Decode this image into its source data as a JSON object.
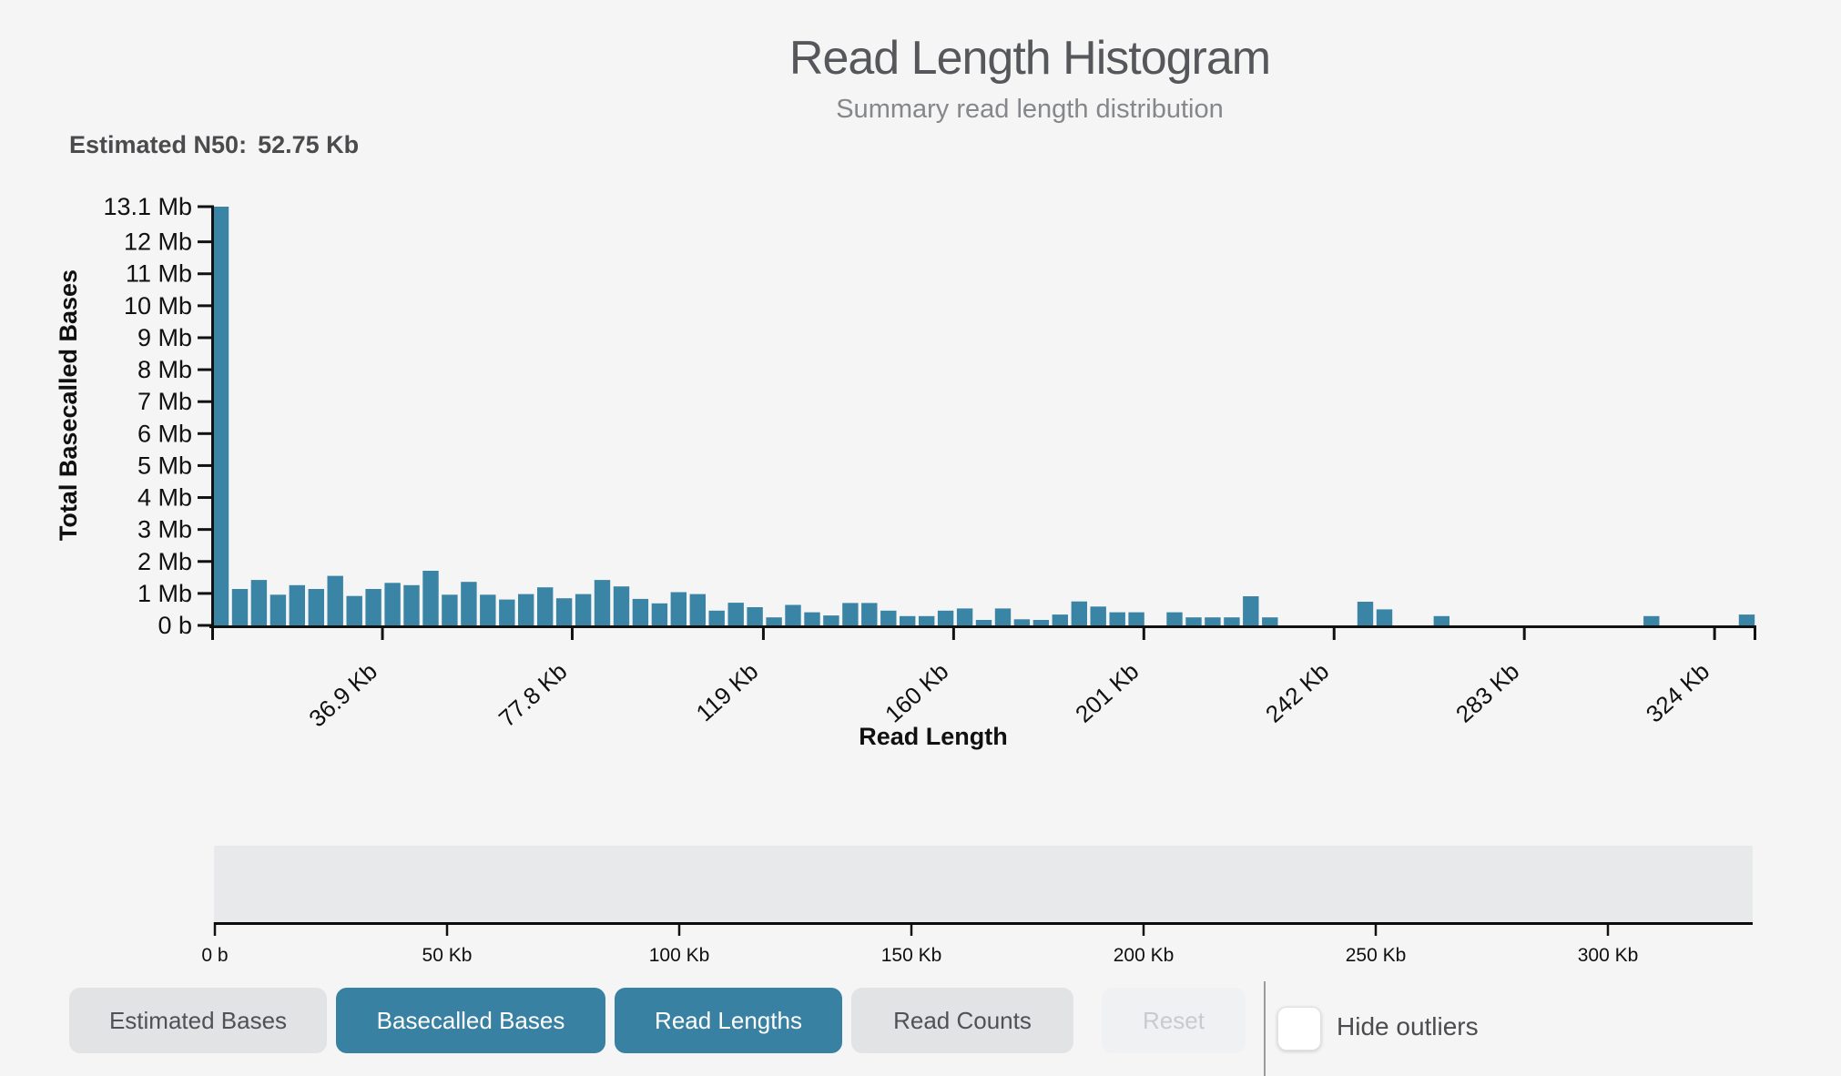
{
  "header": {
    "title": "Read Length Histogram",
    "subtitle": "Summary read length distribution"
  },
  "n50": {
    "label": "Estimated N50:",
    "value": "52.75 Kb"
  },
  "chart_data": {
    "type": "bar",
    "title": "Read Length Histogram",
    "xlabel": "Read Length",
    "ylabel": "Total Basecalled Bases",
    "bar_color": "#3a84a5",
    "axis_color": "#111111",
    "ylim": [
      0,
      13.1
    ],
    "x_max_kb": 333,
    "bin_width_kb": 4.1,
    "values_mb": [
      13.1,
      1.14,
      1.42,
      0.96,
      1.26,
      1.14,
      1.55,
      0.92,
      1.14,
      1.33,
      1.26,
      1.71,
      0.96,
      1.36,
      0.96,
      0.81,
      0.98,
      1.19,
      0.85,
      0.98,
      1.42,
      1.22,
      0.83,
      0.69,
      1.04,
      0.98,
      0.46,
      0.71,
      0.57,
      0.25,
      0.64,
      0.41,
      0.31,
      0.7,
      0.7,
      0.46,
      0.29,
      0.29,
      0.46,
      0.53,
      0.17,
      0.53,
      0.19,
      0.17,
      0.34,
      0.75,
      0.59,
      0.41,
      0.41,
      0,
      0.41,
      0.25,
      0.25,
      0.25,
      0.91,
      0.25,
      0,
      0,
      0,
      0,
      0.74,
      0.5,
      0,
      0,
      0.29,
      0,
      0,
      0,
      0,
      0,
      0,
      0,
      0,
      0,
      0,
      0.29,
      0,
      0,
      0,
      0,
      0.34
    ],
    "y_ticks": [
      {
        "v": 0,
        "label": "0 b"
      },
      {
        "v": 1,
        "label": "1 Mb"
      },
      {
        "v": 2,
        "label": "2 Mb"
      },
      {
        "v": 3,
        "label": "3 Mb"
      },
      {
        "v": 4,
        "label": "4 Mb"
      },
      {
        "v": 5,
        "label": "5 Mb"
      },
      {
        "v": 6,
        "label": "6 Mb"
      },
      {
        "v": 7,
        "label": "7 Mb"
      },
      {
        "v": 8,
        "label": "8 Mb"
      },
      {
        "v": 9,
        "label": "9 Mb"
      },
      {
        "v": 10,
        "label": "10 Mb"
      },
      {
        "v": 11,
        "label": "11 Mb"
      },
      {
        "v": 12,
        "label": "12 Mb"
      },
      {
        "v": 13.1,
        "label": "13.1 Mb"
      }
    ],
    "x_ticks": [
      {
        "kb": 36.9,
        "label": "36.9 Kb"
      },
      {
        "kb": 77.8,
        "label": "77.8 Kb"
      },
      {
        "kb": 119,
        "label": "119 Kb"
      },
      {
        "kb": 160,
        "label": "160 Kb"
      },
      {
        "kb": 201,
        "label": "201 Kb"
      },
      {
        "kb": 242,
        "label": "242 Kb"
      },
      {
        "kb": 283,
        "label": "283 Kb"
      },
      {
        "kb": 324,
        "label": "324 Kb"
      }
    ]
  },
  "slider": {
    "track_color": "#e8e9eb",
    "ticks": [
      {
        "kb": 0,
        "label": "0 b"
      },
      {
        "kb": 50,
        "label": "50 Kb"
      },
      {
        "kb": 100,
        "label": "100 Kb"
      },
      {
        "kb": 150,
        "label": "150 Kb"
      },
      {
        "kb": 200,
        "label": "200 Kb"
      },
      {
        "kb": 250,
        "label": "250 Kb"
      },
      {
        "kb": 300,
        "label": "300 Kb"
      }
    ]
  },
  "controls": {
    "buttons": [
      {
        "label": "Estimated Bases",
        "active": false,
        "disabled": false
      },
      {
        "label": "Basecalled Bases",
        "active": true,
        "disabled": false
      },
      {
        "label": "Read Lengths",
        "active": true,
        "disabled": false
      },
      {
        "label": "Read Counts",
        "active": false,
        "disabled": false
      }
    ],
    "reset": {
      "label": "Reset",
      "disabled": true
    },
    "hide_outliers": {
      "label": "Hide outliers",
      "checked": false
    },
    "accent_color": "#3881a2"
  }
}
